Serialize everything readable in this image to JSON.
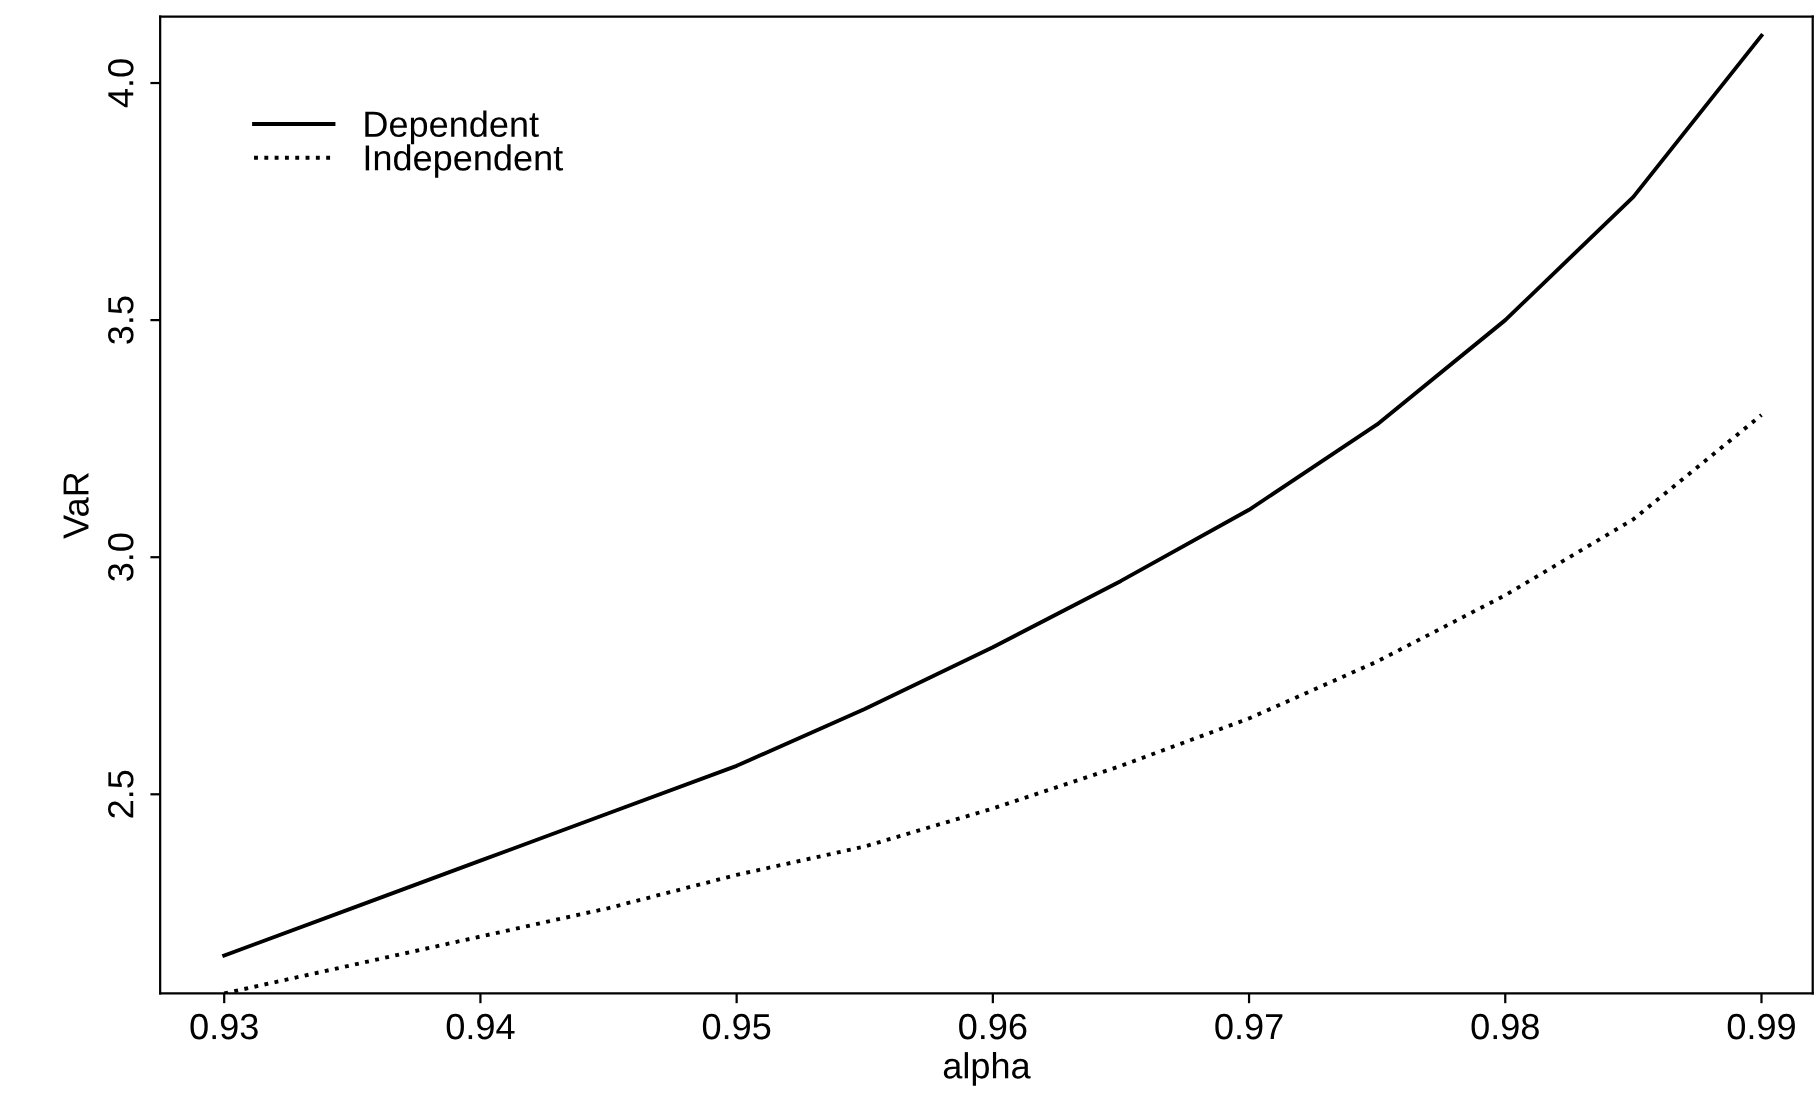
{
  "chart_data": {
    "type": "line",
    "xlabel": "alpha",
    "ylabel": "VaR",
    "x": [
      0.93,
      0.935,
      0.94,
      0.945,
      0.95,
      0.955,
      0.96,
      0.965,
      0.97,
      0.975,
      0.98,
      0.985,
      0.99
    ],
    "series": [
      {
        "name": "Dependent",
        "color": "#000000",
        "line_style": "solid",
        "values": [
          2.16,
          2.26,
          2.36,
          2.46,
          2.56,
          2.68,
          2.81,
          2.95,
          3.1,
          3.28,
          3.5,
          3.76,
          4.1
        ]
      },
      {
        "name": "Independent",
        "color": "#000000",
        "line_style": "dotted",
        "values": [
          2.08,
          2.14,
          2.2,
          2.26,
          2.33,
          2.39,
          2.47,
          2.56,
          2.66,
          2.78,
          2.92,
          3.08,
          3.3
        ]
      }
    ],
    "xlim": [
      0.9275,
      0.992
    ],
    "ylim": [
      2.08,
      4.14
    ],
    "xticks": [
      0.93,
      0.94,
      0.95,
      0.96,
      0.97,
      0.98,
      0.99
    ],
    "yticks": [
      {
        "value": 2.5,
        "label": "2.5"
      },
      {
        "value": 3.0,
        "label": "3.0"
      },
      {
        "value": 3.5,
        "label": "3.5"
      },
      {
        "value": 4.0,
        "label": "4.0"
      }
    ],
    "grid": false,
    "legend": "top left"
  }
}
